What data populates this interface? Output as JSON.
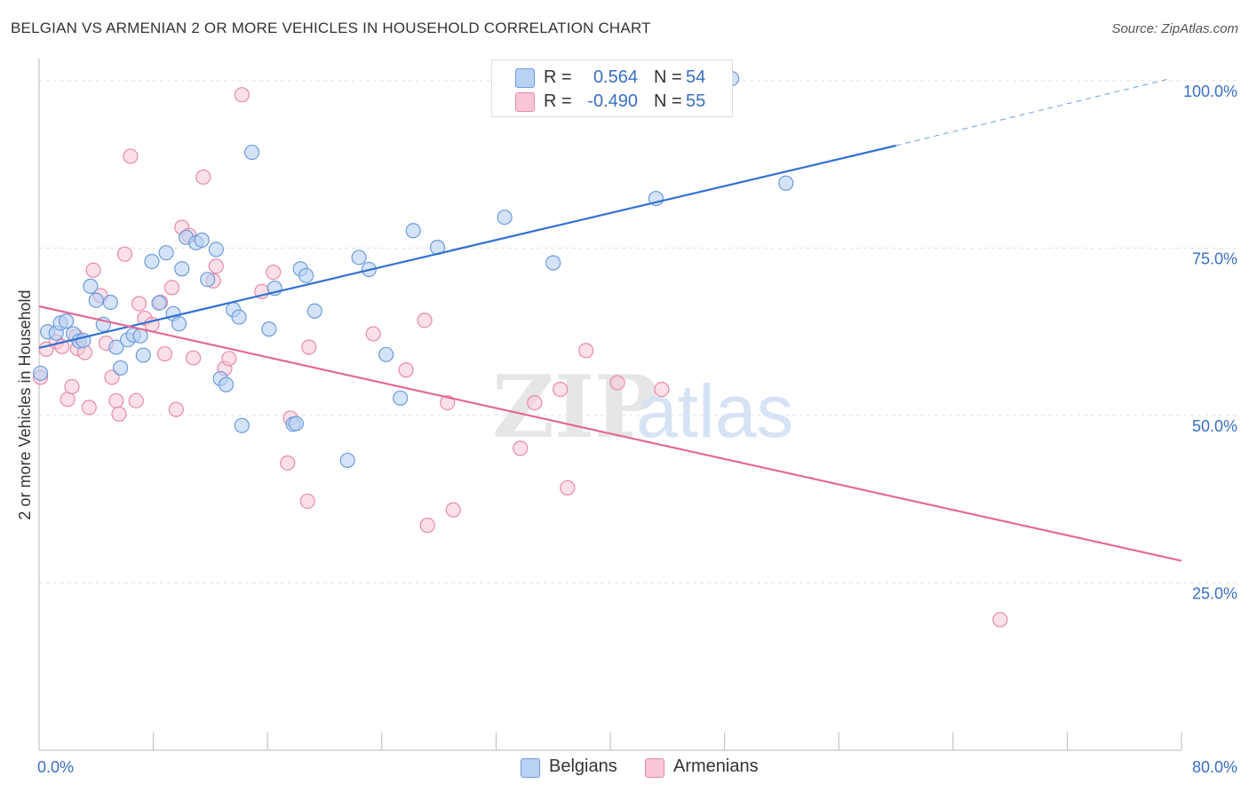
{
  "header": {
    "title": "BELGIAN VS ARMENIAN 2 OR MORE VEHICLES IN HOUSEHOLD CORRELATION CHART",
    "source": "Source: ZipAtlas.com"
  },
  "legend": {
    "rows": [
      {
        "r_label": "R =",
        "r_value": "0.564",
        "n_label": "N =",
        "n_value": "54",
        "color": "#8db4e8"
      },
      {
        "r_label": "R =",
        "r_value": "-0.490",
        "n_label": "N =",
        "n_value": "55",
        "color": "#f2a4bd"
      }
    ]
  },
  "bottom_legend": {
    "items": [
      {
        "label": "Belgians",
        "color": "#8db4e8"
      },
      {
        "label": "Armenians",
        "color": "#f2a4bd"
      }
    ]
  },
  "watermark": {
    "zip": "ZIP",
    "atlas": "atlas"
  },
  "colors": {
    "belgian_fill": "#b9d1f3",
    "belgian_stroke": "#6c9bdc",
    "belgian_line": "#3372d1",
    "armenian_fill": "#f8c6d6",
    "armenian_stroke": "#e88aa9",
    "armenian_line": "#e36a95",
    "tick_label": "#3a6fc4",
    "grid": "#e1e1e1"
  },
  "chart_data": {
    "type": "scatter",
    "title": "BELGIAN VS ARMENIAN 2 OR MORE VEHICLES IN HOUSEHOLD CORRELATION CHART",
    "xlabel": "",
    "ylabel": "2 or more Vehicles in Household",
    "xlim": [
      0,
      80
    ],
    "ylim": [
      0,
      102.5
    ],
    "x_tick_labels": [
      "0.0%",
      "80.0%"
    ],
    "y_ticks": [
      {
        "value": 25,
        "label": "25.0%"
      },
      {
        "value": 50,
        "label": "50.0%"
      },
      {
        "value": 75,
        "label": "75.0%"
      },
      {
        "value": 100,
        "label": "100.0%"
      }
    ],
    "grid": true,
    "legend_position": "top-center",
    "series": [
      {
        "name": "Belgians",
        "r": 0.564,
        "n": 54,
        "trend": {
          "x0": 0,
          "y0": 60.1,
          "x1": 60,
          "y1": 90.3,
          "dashed_to_x": 79,
          "dashed_to_y": 100.2
        },
        "points": [
          [
            0.1,
            56.3
          ],
          [
            0.6,
            62.5
          ],
          [
            1.2,
            62.3
          ],
          [
            1.5,
            63.8
          ],
          [
            1.9,
            64.1
          ],
          [
            2.4,
            62.2
          ],
          [
            2.8,
            61.1
          ],
          [
            3.1,
            61.2
          ],
          [
            3.6,
            69.3
          ],
          [
            4.0,
            67.2
          ],
          [
            4.5,
            63.6
          ],
          [
            5.0,
            66.9
          ],
          [
            5.4,
            60.2
          ],
          [
            5.7,
            57.1
          ],
          [
            6.2,
            61.3
          ],
          [
            6.6,
            62.0
          ],
          [
            7.1,
            61.9
          ],
          [
            7.3,
            59.0
          ],
          [
            7.9,
            73.0
          ],
          [
            8.4,
            66.8
          ],
          [
            8.9,
            74.3
          ],
          [
            9.4,
            65.2
          ],
          [
            9.8,
            63.7
          ],
          [
            10.0,
            71.9
          ],
          [
            10.3,
            76.6
          ],
          [
            11.0,
            75.8
          ],
          [
            11.4,
            76.2
          ],
          [
            11.8,
            70.3
          ],
          [
            12.4,
            74.8
          ],
          [
            12.7,
            55.5
          ],
          [
            13.1,
            54.6
          ],
          [
            13.6,
            65.8
          ],
          [
            14.0,
            64.7
          ],
          [
            14.2,
            48.5
          ],
          [
            14.9,
            89.3
          ],
          [
            16.1,
            62.9
          ],
          [
            16.5,
            69.0
          ],
          [
            17.8,
            48.7
          ],
          [
            18.3,
            71.9
          ],
          [
            18.7,
            70.9
          ],
          [
            19.3,
            65.6
          ],
          [
            21.6,
            43.3
          ],
          [
            22.4,
            73.6
          ],
          [
            23.1,
            71.8
          ],
          [
            24.3,
            59.1
          ],
          [
            25.3,
            52.6
          ],
          [
            26.2,
            77.6
          ],
          [
            27.9,
            75.1
          ],
          [
            32.6,
            79.6
          ],
          [
            36.0,
            72.8
          ],
          [
            43.2,
            82.4
          ],
          [
            48.5,
            100.3
          ],
          [
            52.3,
            84.7
          ],
          [
            18.0,
            48.8
          ]
        ]
      },
      {
        "name": "Armenians",
        "r": -0.49,
        "n": 55,
        "trend": {
          "x0": 0,
          "y0": 66.3,
          "x1": 80,
          "y1": 28.3
        },
        "points": [
          [
            0.1,
            55.7
          ],
          [
            0.5,
            59.9
          ],
          [
            1.2,
            61.0
          ],
          [
            1.6,
            60.3
          ],
          [
            2.0,
            52.4
          ],
          [
            2.6,
            61.8
          ],
          [
            2.7,
            60.0
          ],
          [
            3.2,
            59.4
          ],
          [
            3.5,
            51.2
          ],
          [
            3.8,
            71.7
          ],
          [
            4.3,
            67.9
          ],
          [
            4.7,
            60.8
          ],
          [
            5.1,
            55.7
          ],
          [
            5.4,
            52.2
          ],
          [
            5.6,
            50.2
          ],
          [
            6.0,
            74.1
          ],
          [
            6.4,
            88.7
          ],
          [
            6.8,
            52.2
          ],
          [
            7.0,
            66.7
          ],
          [
            7.4,
            64.5
          ],
          [
            7.9,
            63.6
          ],
          [
            8.5,
            66.9
          ],
          [
            8.8,
            59.2
          ],
          [
            9.3,
            69.1
          ],
          [
            9.6,
            50.9
          ],
          [
            10.0,
            78.1
          ],
          [
            10.5,
            76.9
          ],
          [
            10.8,
            58.6
          ],
          [
            11.5,
            85.6
          ],
          [
            12.2,
            70.1
          ],
          [
            12.4,
            72.3
          ],
          [
            13.0,
            57.0
          ],
          [
            13.3,
            58.5
          ],
          [
            14.2,
            97.9
          ],
          [
            15.6,
            68.5
          ],
          [
            16.4,
            71.4
          ],
          [
            17.4,
            42.9
          ],
          [
            17.6,
            49.6
          ],
          [
            18.8,
            37.2
          ],
          [
            18.9,
            60.2
          ],
          [
            23.4,
            62.2
          ],
          [
            25.7,
            56.8
          ],
          [
            27.0,
            64.2
          ],
          [
            27.2,
            33.6
          ],
          [
            28.6,
            51.9
          ],
          [
            29.0,
            35.9
          ],
          [
            33.7,
            45.1
          ],
          [
            34.7,
            51.9
          ],
          [
            36.5,
            53.9
          ],
          [
            37.0,
            39.2
          ],
          [
            38.3,
            59.7
          ],
          [
            40.5,
            54.9
          ],
          [
            43.6,
            53.9
          ],
          [
            67.3,
            19.5
          ],
          [
            2.3,
            54.3
          ]
        ]
      }
    ]
  }
}
